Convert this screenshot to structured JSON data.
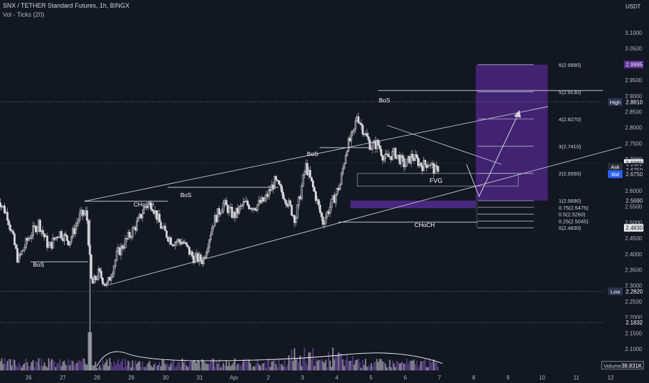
{
  "header": {
    "title": "SNX / TETHER Standard Futures, 1h, BINGX",
    "indicator": "Vol - Ticks (20)",
    "currency": "USDT"
  },
  "chart_data": {
    "type": "candlestick",
    "y_ticks": [
      "3.1000",
      "3.0500",
      "3.0000",
      "2.9500",
      "2.9000",
      "2.8500",
      "2.8000",
      "2.7500",
      "2.7000",
      "2.6500",
      "2.6000",
      "2.5500",
      "2.5000",
      "2.4500",
      "2.4000",
      "2.3500",
      "2.3000",
      "2.2500",
      "2.2000",
      "2.1500",
      "2.1000"
    ],
    "ylim": [
      2.08,
      3.12
    ],
    "x_ticks": [
      {
        "label": "26",
        "x": 0.5
      },
      {
        "label": "27",
        "x": 1.5
      },
      {
        "label": "28",
        "x": 2.5
      },
      {
        "label": "29",
        "x": 3.5
      },
      {
        "label": "30",
        "x": 4.5
      },
      {
        "label": "31",
        "x": 5.5
      },
      {
        "label": "Apr",
        "x": 6.5
      },
      {
        "label": "2",
        "x": 7.5
      },
      {
        "label": "3",
        "x": 8.5
      },
      {
        "label": "4",
        "x": 9.5
      },
      {
        "label": "5",
        "x": 10.5
      },
      {
        "label": "6",
        "x": 11.5
      },
      {
        "label": "7",
        "x": 12.5
      },
      {
        "label": "8",
        "x": 13.5
      },
      {
        "label": "9",
        "x": 14.5
      },
      {
        "label": "10",
        "x": 15.5
      },
      {
        "label": "11",
        "x": 16.5
      },
      {
        "label": "12",
        "x": 17.5
      }
    ],
    "xlim": [
      0,
      18.1
    ],
    "price_path": [
      [
        0.0,
        2.58
      ],
      [
        0.3,
        2.52
      ],
      [
        0.6,
        2.38
      ],
      [
        0.9,
        2.45
      ],
      [
        1.2,
        2.5
      ],
      [
        1.5,
        2.42
      ],
      [
        1.8,
        2.47
      ],
      [
        2.1,
        2.44
      ],
      [
        2.4,
        2.52
      ],
      [
        2.6,
        2.53
      ],
      [
        2.75,
        2.3
      ],
      [
        2.95,
        2.34
      ],
      [
        3.2,
        2.3
      ],
      [
        3.5,
        2.4
      ],
      [
        3.8,
        2.45
      ],
      [
        4.1,
        2.5
      ],
      [
        4.3,
        2.55
      ],
      [
        4.5,
        2.56
      ],
      [
        4.8,
        2.48
      ],
      [
        5.1,
        2.44
      ],
      [
        5.4,
        2.44
      ],
      [
        5.7,
        2.39
      ],
      [
        6.0,
        2.38
      ],
      [
        6.3,
        2.5
      ],
      [
        6.6,
        2.56
      ],
      [
        6.9,
        2.52
      ],
      [
        7.2,
        2.56
      ],
      [
        7.5,
        2.55
      ],
      [
        7.8,
        2.57
      ],
      [
        8.1,
        2.63
      ],
      [
        8.4,
        2.58
      ],
      [
        8.7,
        2.51
      ],
      [
        9.0,
        2.68
      ],
      [
        9.3,
        2.58
      ],
      [
        9.5,
        2.5
      ],
      [
        9.8,
        2.57
      ],
      [
        10.0,
        2.62
      ],
      [
        10.2,
        2.74
      ],
      [
        10.4,
        2.78
      ],
      [
        10.5,
        2.84
      ],
      [
        10.65,
        2.8
      ],
      [
        10.9,
        2.74
      ],
      [
        11.1,
        2.75
      ],
      [
        11.3,
        2.7
      ],
      [
        11.6,
        2.72
      ],
      [
        11.9,
        2.68
      ],
      [
        12.1,
        2.71
      ],
      [
        12.4,
        2.68
      ],
      [
        12.6,
        2.69
      ],
      [
        12.8,
        2.66
      ],
      [
        12.9,
        2.68
      ]
    ],
    "volume_spike_x": 2.7,
    "annotations": {
      "bos_labels": [
        {
          "text": "BoS",
          "x": 1.2,
          "y": 2.36
        },
        {
          "text": "BoS",
          "x": 5.5,
          "y": 2.58
        },
        {
          "text": "BoS",
          "x": 9.2,
          "y": 2.71
        },
        {
          "text": "BoS",
          "x": 11.3,
          "y": 2.88
        }
      ],
      "choch_labels": [
        {
          "text": "CHoCH",
          "x": 2.95,
          "y": 2.55
        },
        {
          "text": "CHoCH",
          "x": 11.15,
          "y": 2.485
        }
      ],
      "fvg_label": "FVG",
      "fib_levels": [
        {
          "label": "6(2.9990)",
          "price": 2.999
        },
        {
          "label": "5(2.9130)",
          "price": 2.913
        },
        {
          "label": "4(2.8270)",
          "price": 2.827
        },
        {
          "label": "3(2.7410)",
          "price": 2.741
        },
        {
          "label": "2(2.6550)",
          "price": 2.655
        },
        {
          "label": "1(2.5690)",
          "price": 2.569
        },
        {
          "label": "0.75(2.5475)",
          "price": 2.5475
        },
        {
          "label": "0.5(2.5260)",
          "price": 2.526
        },
        {
          "label": "0.25(2.5045)",
          "price": 2.5045
        },
        {
          "label": "0(2.4830)",
          "price": 2.483
        }
      ]
    },
    "price_labels": [
      {
        "text": "2.9995",
        "price": 2.9995,
        "bg": "#5b2b91",
        "fg": "#ffffff"
      },
      {
        "text": "2.8810",
        "price": 2.881,
        "bg": "#131722",
        "fg": "#ffffff",
        "tag": "High",
        "tag_bg": "#2a3550"
      },
      {
        "text": "2.6880",
        "price": 2.688,
        "bg": "#e8e8ea",
        "fg": "#131722"
      },
      {
        "text": "2.6755",
        "price": 2.6755,
        "bg": "#131722",
        "fg": "#d1d4dc",
        "tag": "Ask",
        "tag_bg": "#2a2e39"
      },
      {
        "text": "2.6750",
        "price": 2.665,
        "bg": "#131722",
        "fg": "#d1d4dc"
      },
      {
        "text": "2.6750",
        "price": 2.6525,
        "bg": "#131722",
        "fg": "#d1d4dc",
        "tag": "Bid",
        "tag_bg": "#2962ff"
      },
      {
        "text": "2.5690",
        "price": 2.569,
        "bg": "#131722",
        "fg": "#d1d4dc"
      },
      {
        "text": "2.4830",
        "price": 2.483,
        "bg": "#e8e8ea",
        "fg": "#131722"
      },
      {
        "text": "2.2820",
        "price": 2.282,
        "bg": "#131722",
        "fg": "#ffffff",
        "tag": "Low",
        "tag_bg": "#2a3550"
      },
      {
        "text": "2.1832",
        "price": 2.1832,
        "bg": "#131722",
        "fg": "#ffffff"
      }
    ],
    "volume_label": {
      "tag": "Volume",
      "value": "38.831K"
    }
  },
  "colors": {
    "bg": "#131722",
    "candle": "#d8d8dc",
    "line": "#c8cad0",
    "grid_text": "#b2b5be",
    "purple_box": "#4a2680",
    "fvg_zone": "#5b2fa0",
    "volume": "#7a4fb5"
  }
}
